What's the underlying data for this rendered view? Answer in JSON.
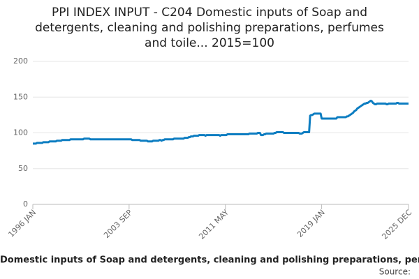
{
  "chart_data": {
    "type": "line",
    "title": [
      "PPI INDEX INPUT - C204 Domestic inputs of Soap and",
      "detergents, cleaning and polishing preparations, perfumes",
      "and toile... 2015=100"
    ],
    "source": "Source:",
    "categories": [
      "1996 JAN",
      null,
      null,
      null,
      null,
      null,
      null,
      null,
      null,
      null,
      null,
      null,
      null,
      null,
      null,
      null,
      null,
      null,
      null,
      null,
      null,
      null,
      null,
      null,
      null,
      null,
      null,
      null,
      null,
      null,
      null,
      null,
      null,
      null,
      null,
      null,
      null,
      null,
      null,
      null,
      null,
      null,
      null,
      null,
      null,
      null,
      null,
      null,
      null,
      null,
      null,
      null,
      null,
      null,
      null,
      null,
      null,
      null,
      null,
      null,
      null,
      null,
      null,
      null,
      null,
      null,
      null,
      null,
      null,
      null,
      null,
      null,
      null,
      null,
      null,
      null,
      null,
      null,
      null,
      null,
      null,
      null,
      null,
      null,
      null,
      null,
      null,
      null,
      null,
      null,
      null,
      null,
      "2003 SEP",
      null,
      null,
      null,
      null,
      null,
      null,
      null,
      null,
      null,
      null,
      null,
      null,
      null,
      null,
      null,
      null,
      null,
      null,
      null,
      null,
      null,
      null,
      null,
      null,
      null,
      null,
      null,
      null,
      null,
      null,
      null,
      null,
      null,
      null,
      null,
      null,
      null,
      null,
      null,
      null,
      null,
      null,
      null,
      null,
      null,
      null,
      null,
      null,
      null,
      null,
      null,
      null,
      null,
      null,
      null,
      null,
      null,
      null,
      null,
      null,
      null,
      null,
      null,
      null,
      null,
      null,
      null,
      null,
      null,
      null,
      null,
      null,
      null,
      null,
      null,
      null,
      null,
      null,
      null,
      null,
      null,
      null,
      null,
      null,
      null,
      null,
      null,
      null,
      null,
      null,
      null,
      "2011 MAY",
      null,
      null,
      null,
      null,
      null,
      null,
      null,
      null,
      null,
      null,
      null,
      null,
      null,
      null,
      null,
      null,
      null,
      null,
      null,
      null,
      null,
      null,
      null,
      null,
      null,
      null,
      null,
      null,
      null,
      null,
      null,
      null,
      null,
      null,
      null,
      null,
      null,
      null,
      null,
      null,
      null,
      null,
      null,
      null,
      null,
      null,
      null,
      null,
      null,
      null,
      null,
      null,
      null,
      null,
      null,
      null,
      null,
      null,
      null,
      null,
      null,
      null,
      null,
      null,
      null,
      null,
      null,
      null,
      null,
      null,
      null,
      null,
      null,
      null,
      null,
      null,
      null,
      null,
      null,
      null,
      null,
      null,
      null,
      null,
      null,
      null,
      null,
      null,
      null,
      null,
      null,
      "2019 JAN",
      null,
      null,
      null,
      null,
      null,
      null,
      null,
      null,
      null,
      null,
      null,
      null,
      null,
      null,
      null,
      null,
      null,
      null,
      null,
      null,
      null,
      null,
      null,
      null,
      null,
      null,
      null,
      null,
      null,
      null,
      null,
      null,
      null,
      null,
      null,
      null,
      null,
      null,
      null,
      null,
      null,
      null,
      null,
      null,
      null,
      null,
      null,
      null,
      null,
      null,
      null,
      null,
      null,
      null,
      null,
      null,
      null,
      null,
      null,
      null,
      null,
      null,
      null,
      null,
      null,
      null,
      null,
      null,
      null,
      null,
      null,
      null,
      null,
      null,
      null,
      null,
      null,
      null,
      null,
      null,
      null,
      null,
      "2025 DEC"
    ],
    "series": [
      {
        "name": "Domestic inputs of Soap and detergents, cleaning and polishing preparations, perfu",
        "color": "#0d7dc1",
        "values": [
          85,
          85,
          85,
          85,
          86,
          86,
          86,
          86,
          86,
          86,
          87,
          87,
          87,
          87,
          87,
          87,
          88,
          88,
          88,
          88,
          88,
          88,
          88,
          89,
          89,
          89,
          89,
          89,
          90,
          90,
          90,
          90,
          90,
          90,
          90,
          90,
          91,
          91,
          91,
          91,
          91,
          91,
          91,
          91,
          91,
          91,
          91,
          91,
          91,
          92,
          92,
          92,
          92,
          92,
          92,
          91,
          91,
          91,
          91,
          91,
          91,
          91,
          91,
          91,
          91,
          91,
          91,
          91,
          91,
          91,
          91,
          91,
          91,
          91,
          91,
          91,
          91,
          91,
          91,
          91,
          91,
          91,
          91,
          91,
          91,
          91,
          91,
          91,
          91,
          91,
          91,
          91,
          91,
          91,
          91,
          90,
          90,
          90,
          90,
          90,
          90,
          90,
          90,
          89,
          89,
          89,
          89,
          89,
          89,
          89,
          88,
          88,
          88,
          88,
          88,
          89,
          89,
          89,
          89,
          89,
          89,
          90,
          90,
          89,
          90,
          90,
          91,
          91,
          91,
          91,
          91,
          91,
          91,
          91,
          91,
          92,
          92,
          92,
          92,
          92,
          92,
          92,
          92,
          92,
          92,
          93,
          93,
          93,
          93,
          94,
          94,
          95,
          95,
          95,
          96,
          96,
          96,
          96,
          96,
          97,
          97,
          97,
          97,
          97,
          97,
          96,
          97,
          97,
          97,
          97,
          97,
          97,
          97,
          97,
          97,
          97,
          97,
          97,
          97,
          96,
          97,
          97,
          97,
          97,
          97,
          97,
          98,
          98,
          98,
          98,
          98,
          98,
          98,
          98,
          98,
          98,
          98,
          98,
          98,
          98,
          98,
          98,
          98,
          98,
          98,
          98,
          98,
          99,
          99,
          99,
          99,
          99,
          99,
          99,
          99,
          100,
          100,
          100,
          97,
          97,
          97,
          98,
          98,
          99,
          99,
          99,
          99,
          99,
          99,
          99,
          99,
          100,
          100,
          101,
          101,
          101,
          101,
          101,
          101,
          101,
          100,
          100,
          100,
          100,
          100,
          100,
          100,
          100,
          100,
          100,
          100,
          100,
          100,
          100,
          100,
          99,
          99,
          99,
          100,
          101,
          101,
          101,
          101,
          101,
          101,
          124,
          125,
          125,
          126,
          127,
          127,
          127,
          127,
          127,
          127,
          127,
          120,
          120,
          120,
          120,
          120,
          120,
          120,
          120,
          120,
          120,
          120,
          120,
          120,
          120,
          120,
          122,
          122,
          122,
          122,
          122,
          122,
          122,
          122,
          122,
          123,
          123,
          124,
          125,
          126,
          127,
          128,
          130,
          131,
          132,
          134,
          135,
          136,
          137,
          138,
          139,
          140,
          141,
          141,
          142,
          142,
          143,
          144,
          145,
          144,
          142,
          141,
          140,
          140,
          141,
          141,
          141,
          141,
          141,
          141,
          141,
          141,
          141,
          140,
          140,
          141,
          141,
          141,
          141,
          141,
          141,
          141,
          141,
          142,
          142,
          141,
          141,
          141,
          141,
          141,
          141,
          141,
          141,
          141,
          141
        ]
      }
    ],
    "ylim": [
      0,
      200
    ],
    "yticks": [
      0,
      50,
      100,
      150,
      200
    ],
    "grid": true
  }
}
